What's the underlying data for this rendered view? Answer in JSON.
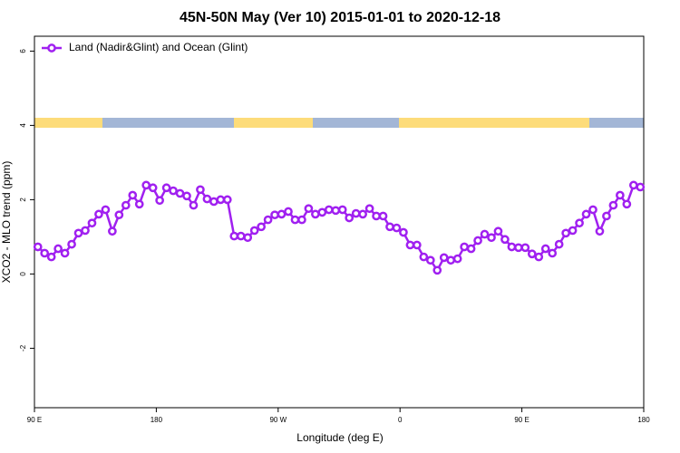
{
  "chart_data": {
    "type": "line",
    "title": "45N-50N May (Ver 10)   2015-01-01 to 2020-12-18",
    "x_label": "Longitude (deg E)",
    "y_label": "XCO2 - MLO trend (ppm)",
    "xlim": [
      90,
      540
    ],
    "xticks": [
      {
        "value": 90,
        "label": "90 E"
      },
      {
        "value": 180,
        "label": "180"
      },
      {
        "value": 270,
        "label": "90 W"
      },
      {
        "value": 360,
        "label": "0"
      },
      {
        "value": 450,
        "label": "90 E"
      },
      {
        "value": 540,
        "label": "180"
      }
    ],
    "ylim": [
      -3.6,
      6.4
    ],
    "yticks": [
      -2,
      0,
      2,
      4,
      6
    ],
    "legend_position": "top-left",
    "x": [
      92.5,
      97.5,
      102.5,
      107.5,
      112.5,
      117.5,
      122.5,
      127.5,
      132.5,
      137.5,
      142.5,
      147.5,
      152.5,
      157.5,
      162.5,
      167.5,
      172.5,
      177.5,
      182.5,
      187.5,
      192.5,
      197.5,
      202.5,
      207.5,
      212.5,
      217.5,
      222.5,
      227.5,
      232.5,
      237.5,
      242.5,
      247.5,
      252.5,
      257.5,
      262.5,
      267.5,
      272.5,
      277.5,
      282.5,
      287.5,
      292.5,
      297.5,
      302.5,
      307.5,
      312.5,
      317.5,
      322.5,
      327.5,
      332.5,
      337.5,
      342.5,
      347.5,
      352.5,
      357.5,
      362.5,
      367.5,
      372.5,
      377.5,
      382.5,
      387.5,
      392.5,
      397.5,
      402.5,
      407.5,
      412.5,
      417.5,
      422.5,
      427.5,
      432.5,
      437.5,
      442.5,
      447.5,
      452.5,
      457.5,
      462.5,
      467.5,
      472.5,
      477.5,
      482.5,
      487.5,
      492.5,
      497.5,
      502.5,
      507.5,
      512.5,
      517.5,
      522.5,
      527.5,
      532.5,
      537.5
    ],
    "series": [
      {
        "name": "Land (Nadir&Glint) and Ocean (Glint)",
        "color": "#a020f0",
        "values": [
          0.73,
          0.56,
          0.46,
          0.68,
          0.56,
          0.8,
          1.1,
          1.17,
          1.37,
          1.61,
          1.73,
          1.15,
          1.59,
          1.85,
          2.12,
          1.88,
          2.39,
          2.32,
          1.98,
          2.32,
          2.24,
          2.17,
          2.1,
          1.85,
          2.27,
          2.02,
          1.95,
          2.0,
          2.0,
          1.02,
          1.02,
          0.98,
          1.17,
          1.27,
          1.46,
          1.59,
          1.61,
          1.68,
          1.46,
          1.46,
          1.76,
          1.61,
          1.66,
          1.73,
          1.71,
          1.73,
          1.51,
          1.63,
          1.61,
          1.76,
          1.56,
          1.56,
          1.27,
          1.24,
          1.12,
          0.78,
          0.78,
          0.46,
          0.37,
          0.1,
          0.44,
          0.37,
          0.41,
          0.73,
          0.68,
          0.9,
          1.07,
          0.98,
          1.15,
          0.93,
          0.73,
          0.71,
          0.71,
          0.54,
          0.46,
          0.68,
          0.56,
          0.8,
          1.1,
          1.17,
          1.37,
          1.61,
          1.73,
          1.15,
          1.56,
          1.85,
          2.12,
          1.88,
          2.39,
          2.34
        ]
      }
    ]
  }
}
